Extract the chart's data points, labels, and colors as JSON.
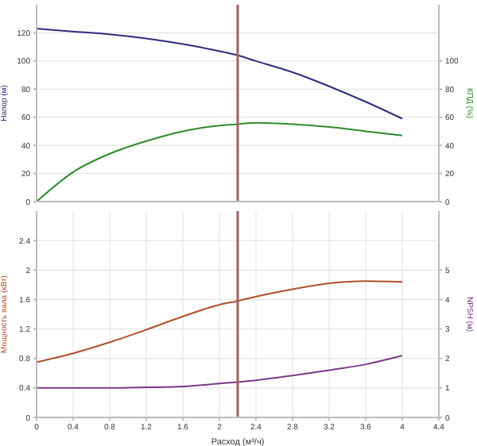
{
  "chart_data": [
    {
      "type": "line",
      "ylabel": "Напор (м)",
      "y2label": "КПД (%)",
      "x": [
        0,
        0.4,
        0.8,
        1.2,
        1.6,
        2.0,
        2.2,
        2.4,
        2.8,
        3.2,
        3.6,
        4.0
      ],
      "series": [
        {
          "color": "#2c2c7a",
          "values": [
            123,
            121,
            119,
            116,
            112,
            107,
            104,
            100,
            92,
            82,
            71,
            59
          ]
        },
        {
          "color": "#2e8b2e",
          "axis": "y2",
          "values": [
            0,
            21,
            34,
            43,
            50,
            54,
            55,
            56,
            55,
            53,
            50,
            47
          ]
        }
      ],
      "xlim": [
        0,
        4.4
      ],
      "xticks": [
        0,
        0.4,
        0.8,
        1.2,
        1.6,
        2,
        2.4,
        2.8,
        3.2,
        3.6,
        4,
        4.4
      ],
      "ylim": [
        0,
        140
      ],
      "yticks": [
        0,
        20,
        40,
        60,
        80,
        100,
        120
      ],
      "y2lim": [
        0,
        140
      ],
      "y2ticks": [
        0,
        20,
        40,
        60,
        80,
        100
      ],
      "tick_labels": "y",
      "grid": true,
      "ref_lines": [
        {
          "axis": "x",
          "value": 2.2,
          "color": "#a06060"
        }
      ]
    },
    {
      "type": "line",
      "xlabel": "Расход (м³/ч)",
      "ylabel": "Мощность вала (кВт)",
      "y2label": "NPSH (м)",
      "x": [
        0,
        0.4,
        0.8,
        1.2,
        1.6,
        2.0,
        2.2,
        2.4,
        2.8,
        3.2,
        3.6,
        4.0
      ],
      "series": [
        {
          "color": "#b0502a",
          "values": [
            0.75,
            0.87,
            1.02,
            1.19,
            1.37,
            1.53,
            1.58,
            1.64,
            1.74,
            1.82,
            1.85,
            1.84
          ]
        },
        {
          "color": "#7a3a8a",
          "axis": "y2",
          "values": [
            1.0,
            1.0,
            1.0,
            1.02,
            1.05,
            1.15,
            1.2,
            1.26,
            1.42,
            1.6,
            1.8,
            2.1
          ]
        }
      ],
      "xlim": [
        0,
        4.4
      ],
      "xticks": [
        0,
        0.4,
        0.8,
        1.2,
        1.6,
        2,
        2.4,
        2.8,
        3.2,
        3.6,
        4,
        4.4
      ],
      "ylim": [
        0,
        2.8
      ],
      "yticks": [
        0,
        0.4,
        0.8,
        1.2,
        1.6,
        2,
        2.4
      ],
      "y2lim": [
        0,
        7
      ],
      "y2ticks": [
        0,
        1,
        2,
        3,
        4,
        5
      ],
      "grid": true,
      "ref_lines": [
        {
          "axis": "x",
          "value": 2.2,
          "color": "#a06060"
        }
      ]
    }
  ]
}
